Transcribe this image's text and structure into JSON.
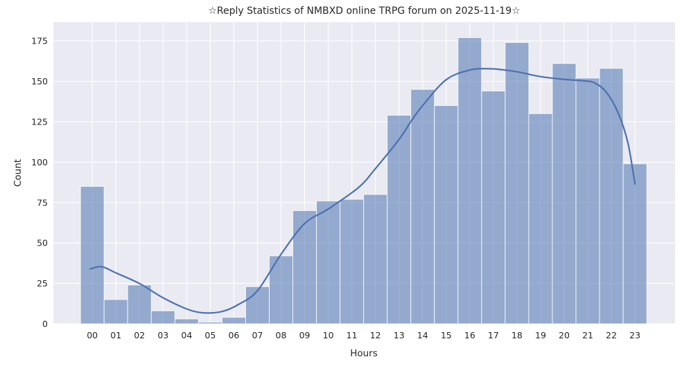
{
  "chart_data": {
    "type": "bar",
    "subtype": "histogram_with_kde_overlay",
    "title": "☆Reply Statistics of NMBXD online TRPG forum on 2025-11-19☆",
    "xlabel": "Hours",
    "ylabel": "Count",
    "categories": [
      "00",
      "01",
      "02",
      "03",
      "04",
      "05",
      "06",
      "07",
      "08",
      "09",
      "10",
      "11",
      "12",
      "13",
      "14",
      "15",
      "16",
      "17",
      "18",
      "19",
      "20",
      "21",
      "22",
      "23"
    ],
    "values": [
      85,
      15,
      24,
      8,
      3,
      1,
      4,
      23,
      42,
      70,
      76,
      77,
      80,
      129,
      145,
      135,
      177,
      144,
      174,
      130,
      161,
      152,
      158,
      99
    ],
    "yticks": [
      0,
      25,
      50,
      75,
      100,
      125,
      150,
      175
    ],
    "ylim": [
      0,
      186.6
    ],
    "xlim": [
      -1.65,
      24.7
    ],
    "grid": true,
    "legend": "none",
    "kde_line": {
      "name": "kde-curve",
      "points": [
        [
          -0.08,
          34
        ],
        [
          0.4,
          35.3
        ],
        [
          1,
          31.5
        ],
        [
          2,
          24.9
        ],
        [
          3,
          16.1
        ],
        [
          4,
          9.2
        ],
        [
          4.7,
          6.8
        ],
        [
          5.5,
          7.6
        ],
        [
          6.2,
          12
        ],
        [
          7,
          20.5
        ],
        [
          8,
          43
        ],
        [
          9,
          62
        ],
        [
          10,
          71
        ],
        [
          11.3,
          84.5
        ],
        [
          12,
          96
        ],
        [
          13,
          114
        ],
        [
          13.5,
          125
        ],
        [
          14,
          135
        ],
        [
          15,
          151
        ],
        [
          16,
          157
        ],
        [
          16.7,
          157.8
        ],
        [
          17.3,
          157.3
        ],
        [
          18,
          155.9
        ],
        [
          19,
          152.9
        ],
        [
          20,
          151.2
        ],
        [
          20.8,
          150.3
        ],
        [
          21.3,
          149
        ],
        [
          21.8,
          143
        ],
        [
          22.3,
          130
        ],
        [
          22.7,
          112
        ],
        [
          23,
          86.5
        ]
      ]
    },
    "colors": {
      "bar_fill": "#4c72b0",
      "bar_alpha": 0.55,
      "bar_edge": "rgba(255,255,255,0.8)",
      "kde_line": "#4c72b0",
      "plot_background": "#eaeaf2",
      "gridline": "#ffffff",
      "figure_background": "#ffffff",
      "text": "#262626"
    }
  }
}
